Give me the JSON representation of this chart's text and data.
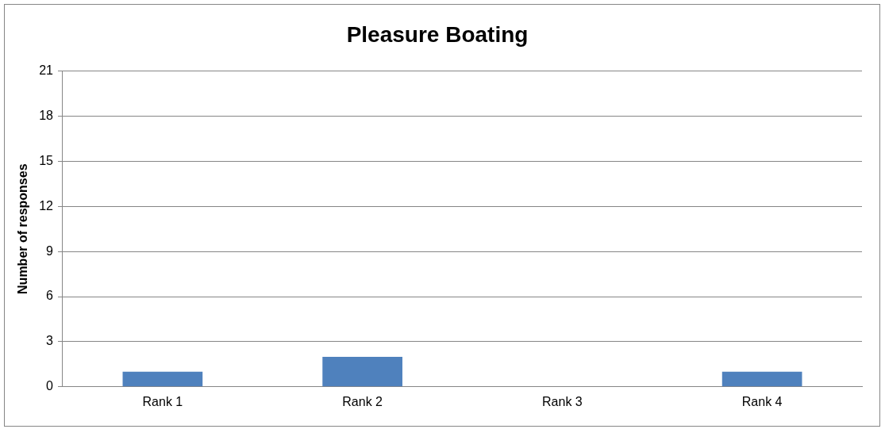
{
  "chart_data": {
    "type": "bar",
    "title": "Pleasure Boating",
    "ylabel": "Number of responses",
    "categories": [
      "Rank 1",
      "Rank 2",
      "Rank 3",
      "Rank 4"
    ],
    "values": [
      1,
      2,
      0,
      1
    ],
    "color": "#4f81bd",
    "ylim": [
      0,
      21
    ],
    "yticks": [
      0,
      3,
      6,
      9,
      12,
      15,
      18,
      21
    ],
    "grid": "y",
    "legend": false
  }
}
